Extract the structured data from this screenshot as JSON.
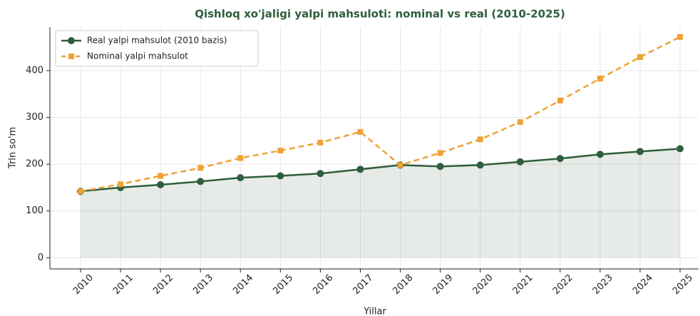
{
  "chart_data": {
    "type": "line",
    "title": "Qishloq xo'jaligi yalpi mahsuloti: nominal vs real (2010-2025)",
    "x_label": "Yillar",
    "y_label": "Trln so'm",
    "categories": [
      "2010",
      "2011",
      "2012",
      "2013",
      "2014",
      "2015",
      "2016",
      "2017",
      "2018",
      "2019",
      "2020",
      "2021",
      "2022",
      "2023",
      "2024",
      "2025"
    ],
    "series": [
      {
        "name": "Real yalpi mahsulot (2010 bazis)",
        "color": "#2e5e3b",
        "marker": "circle",
        "dash": false,
        "fill": true,
        "values": [
          142,
          150,
          156,
          163,
          171,
          175,
          180,
          189,
          198,
          195,
          198,
          205,
          212,
          221,
          227,
          233
        ]
      },
      {
        "name": "Nominal yalpi mahsulot",
        "color": "#eea236",
        "marker": "square",
        "dash": true,
        "fill": false,
        "values": [
          142,
          157,
          175,
          192,
          213,
          229,
          246,
          269,
          198,
          224,
          253,
          290,
          336,
          383,
          429,
          472
        ]
      }
    ],
    "ylim": [
      -24,
      493
    ],
    "yticks": [
      0,
      100,
      200,
      300,
      400
    ],
    "grid": true,
    "legend": "upper left"
  }
}
